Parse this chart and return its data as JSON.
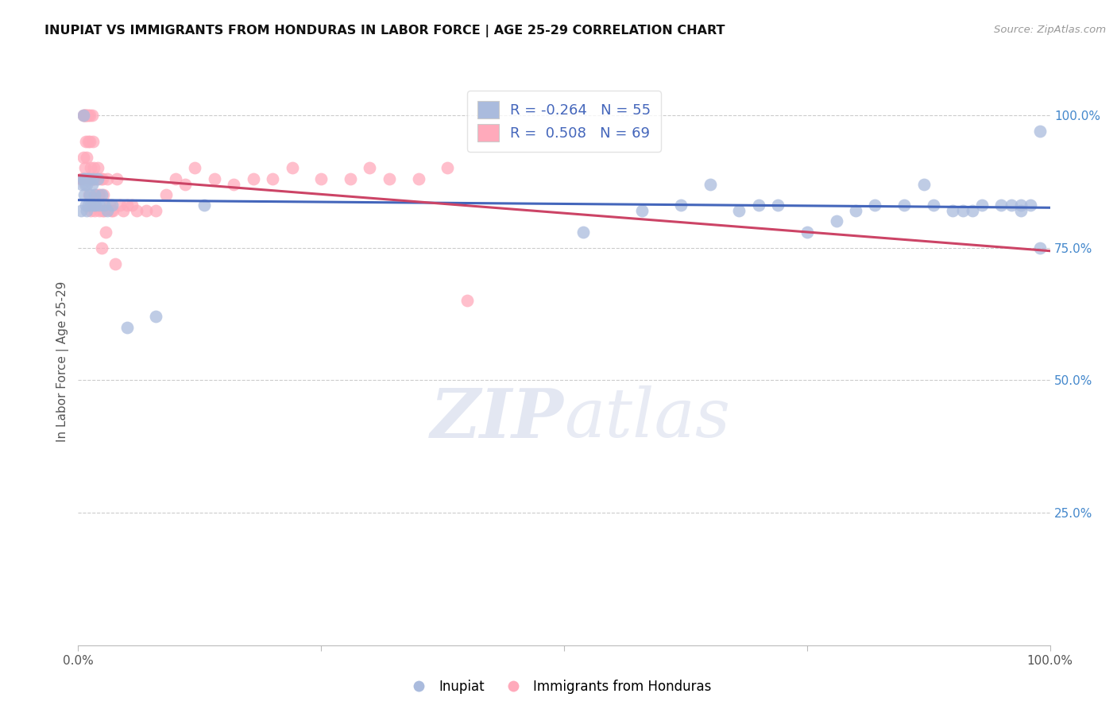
{
  "title": "INUPIAT VS IMMIGRANTS FROM HONDURAS IN LABOR FORCE | AGE 25-29 CORRELATION CHART",
  "source": "Source: ZipAtlas.com",
  "ylabel": "In Labor Force | Age 25-29",
  "xlim": [
    0,
    1.0
  ],
  "ylim": [
    0,
    1.07
  ],
  "blue_R": -0.264,
  "blue_N": 55,
  "pink_R": 0.508,
  "pink_N": 69,
  "blue_color": "#aabbdd",
  "pink_color": "#ffaabb",
  "blue_line_color": "#4466bb",
  "pink_line_color": "#cc4466",
  "right_label_color": "#4488cc",
  "legend_blue_label": "Inupiat",
  "legend_pink_label": "Immigrants from Honduras",
  "blue_scatter_x": [
    0.003,
    0.004,
    0.005,
    0.005,
    0.006,
    0.006,
    0.007,
    0.008,
    0.008,
    0.009,
    0.009,
    0.01,
    0.01,
    0.011,
    0.012,
    0.013,
    0.014,
    0.015,
    0.016,
    0.017,
    0.018,
    0.02,
    0.022,
    0.024,
    0.027,
    0.03,
    0.035,
    0.05,
    0.08,
    0.13,
    0.52,
    0.58,
    0.62,
    0.65,
    0.68,
    0.7,
    0.72,
    0.75,
    0.78,
    0.8,
    0.82,
    0.85,
    0.87,
    0.88,
    0.9,
    0.91,
    0.92,
    0.93,
    0.95,
    0.96,
    0.97,
    0.97,
    0.98,
    0.99,
    0.99
  ],
  "blue_scatter_y": [
    0.82,
    0.87,
    0.88,
    1.0,
    0.88,
    0.85,
    0.87,
    0.88,
    0.83,
    0.87,
    0.82,
    0.88,
    0.83,
    0.88,
    0.85,
    0.83,
    0.87,
    0.88,
    0.83,
    0.85,
    0.83,
    0.88,
    0.83,
    0.85,
    0.83,
    0.82,
    0.83,
    0.6,
    0.62,
    0.83,
    0.78,
    0.82,
    0.83,
    0.87,
    0.82,
    0.83,
    0.83,
    0.78,
    0.8,
    0.82,
    0.83,
    0.83,
    0.87,
    0.83,
    0.82,
    0.82,
    0.82,
    0.83,
    0.83,
    0.83,
    0.82,
    0.83,
    0.83,
    0.75,
    0.97
  ],
  "pink_scatter_x": [
    0.003,
    0.004,
    0.005,
    0.005,
    0.006,
    0.007,
    0.007,
    0.008,
    0.008,
    0.009,
    0.009,
    0.01,
    0.01,
    0.011,
    0.011,
    0.012,
    0.012,
    0.013,
    0.013,
    0.014,
    0.014,
    0.015,
    0.015,
    0.016,
    0.016,
    0.017,
    0.017,
    0.018,
    0.019,
    0.02,
    0.021,
    0.022,
    0.022,
    0.023,
    0.024,
    0.025,
    0.025,
    0.026,
    0.027,
    0.028,
    0.03,
    0.032,
    0.034,
    0.036,
    0.038,
    0.04,
    0.043,
    0.046,
    0.05,
    0.055,
    0.06,
    0.07,
    0.08,
    0.09,
    0.1,
    0.11,
    0.12,
    0.14,
    0.16,
    0.18,
    0.2,
    0.22,
    0.25,
    0.28,
    0.3,
    0.32,
    0.35,
    0.38,
    0.4
  ],
  "pink_scatter_y": [
    0.88,
    0.88,
    1.0,
    0.92,
    1.0,
    1.0,
    0.9,
    1.0,
    0.95,
    1.0,
    0.92,
    1.0,
    0.95,
    0.88,
    0.85,
    1.0,
    0.95,
    0.9,
    0.82,
    1.0,
    0.88,
    0.95,
    0.88,
    0.9,
    0.83,
    0.88,
    0.82,
    0.85,
    0.88,
    0.9,
    0.85,
    0.85,
    0.82,
    0.88,
    0.75,
    0.88,
    0.82,
    0.85,
    0.82,
    0.78,
    0.88,
    0.83,
    0.82,
    0.82,
    0.72,
    0.88,
    0.83,
    0.82,
    0.83,
    0.83,
    0.82,
    0.82,
    0.82,
    0.85,
    0.88,
    0.87,
    0.9,
    0.88,
    0.87,
    0.88,
    0.88,
    0.9,
    0.88,
    0.88,
    0.9,
    0.88,
    0.88,
    0.9,
    0.65
  ]
}
